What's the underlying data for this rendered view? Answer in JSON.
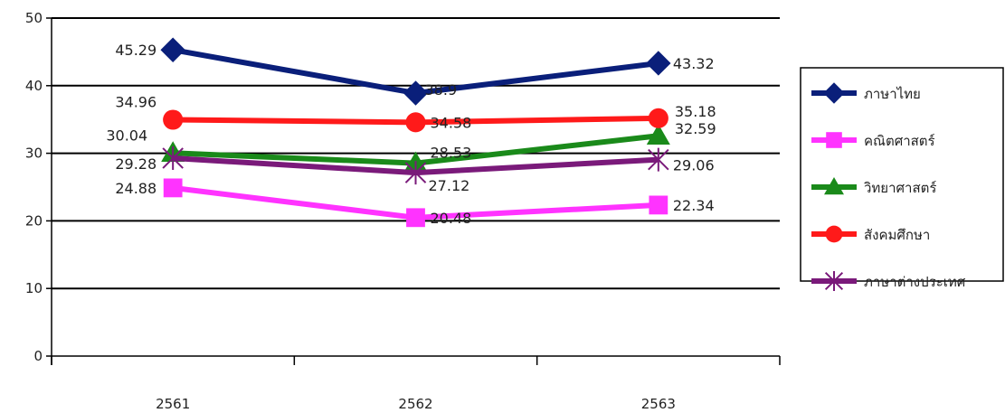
{
  "chart_data": {
    "type": "line",
    "categories": [
      "2561",
      "2562",
      "2563"
    ],
    "ylim": [
      0,
      50
    ],
    "yticks": [
      0,
      10,
      20,
      30,
      40,
      50
    ],
    "grid": true,
    "legend_position": "right",
    "series": [
      {
        "name": "ภาษาไทย",
        "values": [
          45.29,
          38.9,
          43.32
        ],
        "labels": [
          "45.29",
          "38.9",
          "43.32"
        ],
        "color": "#0a1f7a",
        "marker": "diamond"
      },
      {
        "name": "คณิตศาสตร์",
        "values": [
          24.88,
          20.48,
          22.34
        ],
        "labels": [
          "24.88",
          "20.48",
          "22.34"
        ],
        "color": "#ff33ff",
        "marker": "square"
      },
      {
        "name": "วิทยาศาสตร์",
        "values": [
          30.04,
          28.53,
          32.59
        ],
        "labels": [
          "30.04",
          "28.53",
          "32.59"
        ],
        "color": "#1a8a1a",
        "marker": "triangle"
      },
      {
        "name": "สังคมศึกษา",
        "values": [
          34.96,
          34.58,
          35.18
        ],
        "labels": [
          "34.96",
          "34.58",
          "35.18"
        ],
        "color": "#ff1a1a",
        "marker": "circle"
      },
      {
        "name": "ภาษาต่างประเทศ",
        "values": [
          29.28,
          27.12,
          29.06
        ],
        "labels": [
          "29.28",
          "27.12",
          "29.06"
        ],
        "color": "#7a1a7a",
        "marker": "asterisk"
      }
    ]
  }
}
